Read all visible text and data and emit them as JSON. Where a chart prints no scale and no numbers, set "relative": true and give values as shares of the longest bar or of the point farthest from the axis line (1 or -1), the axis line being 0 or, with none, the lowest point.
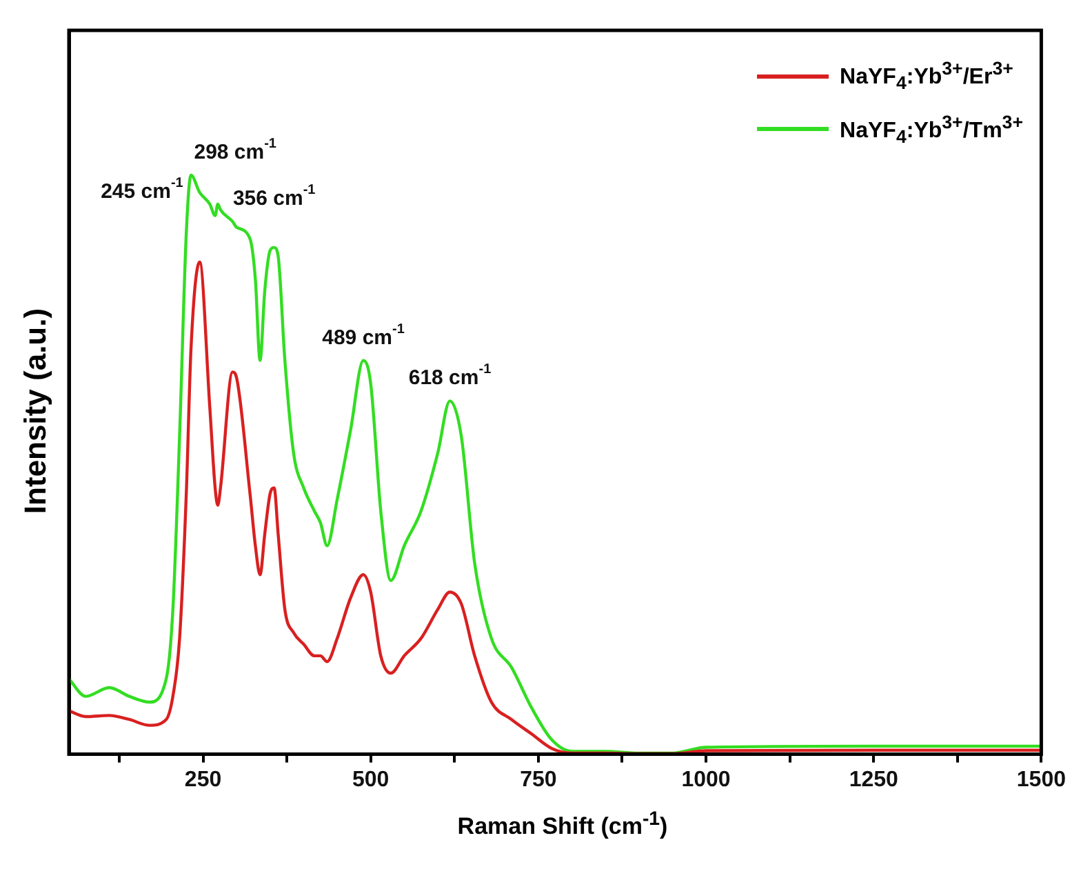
{
  "chart_data": {
    "type": "line",
    "xlabel": "Raman Shift (cm$^{-1}$)",
    "ylabel": "Intensity (a.u.)",
    "relative": true,
    "legend": "top right",
    "grid": false,
    "marker": "none",
    "line_style": "solid",
    "x": [
      50,
      75,
      110,
      140,
      170,
      195,
      205,
      215,
      225,
      232,
      245,
      260,
      268,
      272,
      276,
      294,
      300,
      320,
      328,
      335,
      342,
      350,
      356,
      362,
      372,
      385,
      400,
      416,
      425,
      435,
      450,
      470,
      489,
      500,
      515,
      530,
      550,
      575,
      600,
      618,
      635,
      655,
      680,
      710,
      740,
      770,
      800,
      850,
      900,
      950,
      1000,
      1250,
      1500
    ],
    "xlim": [
      50,
      1500
    ],
    "xticks": [
      {
        "value": 125,
        "label": null
      },
      250,
      {
        "value": 375,
        "label": null
      },
      500,
      {
        "value": 625,
        "label": null
      },
      750,
      {
        "value": 875,
        "label": null
      },
      1000,
      {
        "value": 1125,
        "label": null
      },
      1250,
      {
        "value": 1375,
        "label": null
      },
      1500
    ],
    "series": [
      {
        "name": "NaYF$_{4}$:Yb$^{3+}$/Er$^{3+}$",
        "color": "#d92020",
        "values": [
          0.075,
          0.065,
          0.067,
          0.06,
          0.05,
          0.06,
          0.1,
          0.2,
          0.45,
          0.7,
          0.85,
          0.6,
          0.46,
          0.43,
          0.46,
          0.66,
          0.65,
          0.45,
          0.36,
          0.31,
          0.38,
          0.45,
          0.46,
          0.38,
          0.25,
          0.21,
          0.19,
          0.17,
          0.17,
          0.16,
          0.2,
          0.27,
          0.31,
          0.28,
          0.17,
          0.14,
          0.17,
          0.2,
          0.25,
          0.28,
          0.26,
          0.17,
          0.09,
          0.06,
          0.035,
          0.01,
          0.002,
          0.002,
          0.001,
          0.001,
          0.006,
          0.007,
          0.007
        ]
      },
      {
        "name": "NaYF$_{4}$:Yb$^{3+}$/Tm$^{3+}$",
        "color": "#33dd22",
        "values": [
          0.13,
          0.1,
          0.115,
          0.1,
          0.09,
          0.13,
          0.25,
          0.55,
          0.9,
          1.0,
          0.97,
          0.95,
          0.93,
          0.95,
          0.94,
          0.92,
          0.91,
          0.89,
          0.82,
          0.68,
          0.8,
          0.87,
          0.875,
          0.86,
          0.68,
          0.52,
          0.46,
          0.42,
          0.4,
          0.36,
          0.44,
          0.56,
          0.68,
          0.64,
          0.42,
          0.3,
          0.36,
          0.42,
          0.52,
          0.61,
          0.55,
          0.33,
          0.2,
          0.15,
          0.08,
          0.025,
          0.005,
          0.005,
          0.002,
          0.002,
          0.012,
          0.014,
          0.014
        ]
      }
    ],
    "annotations": [
      {
        "text": "245 cm$^{-1}$",
        "x": 245,
        "y": 0.97
      },
      {
        "text": "298 cm$^{-1}$",
        "x": 298,
        "y": 0.92
      },
      {
        "text": "356 cm$^{-1}$",
        "x": 356,
        "y": 0.875
      },
      {
        "text": "489 cm$^{-1}$",
        "x": 489,
        "y": 0.68
      },
      {
        "text": "618 cm$^{-1}$",
        "x": 618,
        "y": 0.61
      }
    ]
  }
}
